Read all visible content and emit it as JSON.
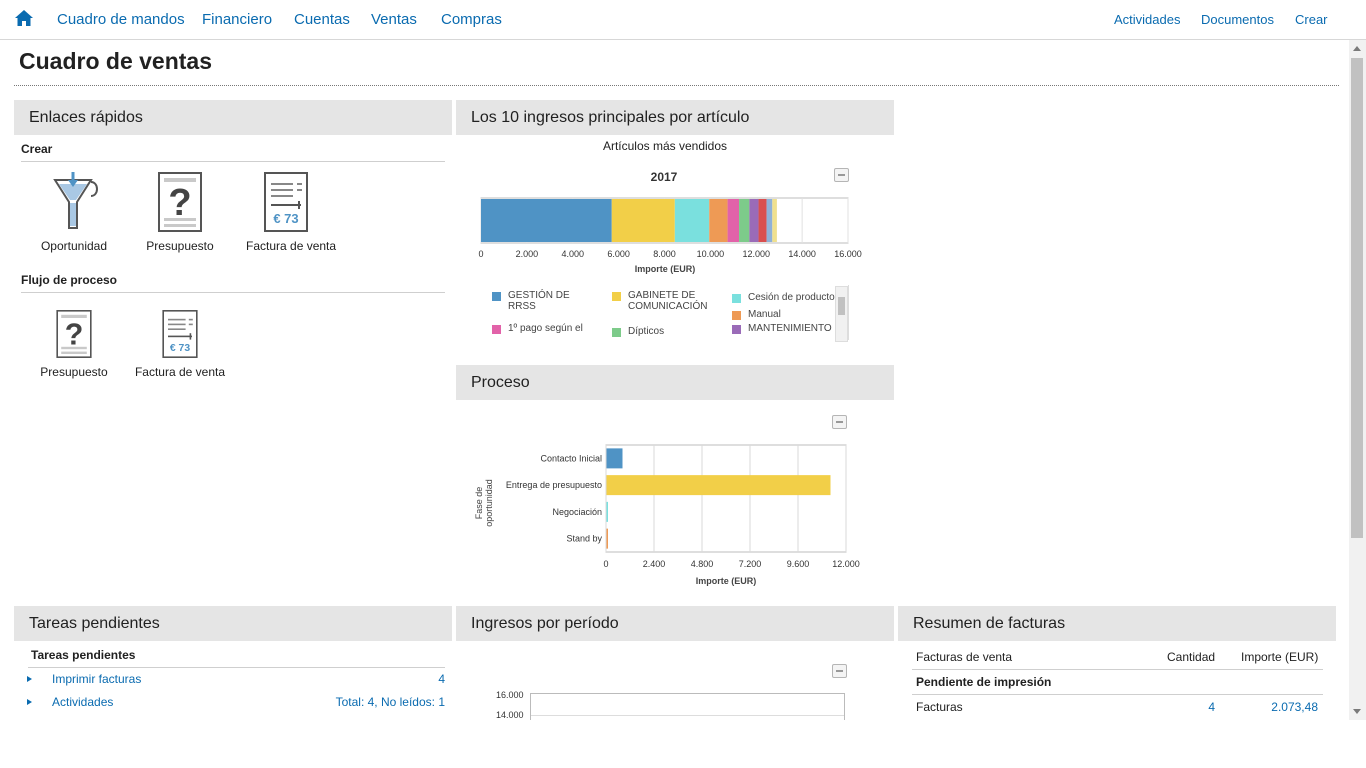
{
  "nav": {
    "left": [
      "Cuadro de mandos",
      "Financiero",
      "Cuentas",
      "Ventas",
      "Compras"
    ],
    "right": [
      "Actividades",
      "Documentos",
      "Crear"
    ]
  },
  "page": {
    "title": "Cuadro de ventas"
  },
  "quick_links": {
    "title": "Enlaces rápidos",
    "create_label": "Crear",
    "create_items": [
      "Oportunidad",
      "Presupuesto",
      "Factura de venta"
    ],
    "flow_label": "Flujo de proceso",
    "flow_items": [
      "Presupuesto",
      "Factura de venta"
    ],
    "invoice_icon_text": "€ 73"
  },
  "top_items": {
    "title": "Los 10 ingresos principales por artículo",
    "chart_data": {
      "type": "bar",
      "orientation": "horizontal-stacked",
      "title": "Artículos más vendidos",
      "subtitle": "2017",
      "xlabel": "Importe (EUR)",
      "xlim": [
        0,
        16000
      ],
      "ticks": [
        "0",
        "2.000",
        "4.000",
        "6.000",
        "8.000",
        "10.000",
        "12.000",
        "14.000",
        "16.000"
      ],
      "categories": [
        "2017"
      ],
      "series": [
        {
          "name": "GESTIÓN DE RRSS",
          "values": [
            5700
          ],
          "color": "#4f93c5"
        },
        {
          "name": "GABINETE DE COMUNICACIÓN",
          "values": [
            2750
          ],
          "color": "#f2cf48"
        },
        {
          "name": "Cesión de producto",
          "values": [
            1500
          ],
          "color": "#7ae0de"
        },
        {
          "name": "Manual",
          "values": [
            800
          ],
          "color": "#ee9a55"
        },
        {
          "name": "1º pago según el",
          "values": [
            500
          ],
          "color": "#e262a9"
        },
        {
          "name": "Dípticos",
          "values": [
            450
          ],
          "color": "#7dcb8a"
        },
        {
          "name": "MANTENIMIENTO",
          "values": [
            400
          ],
          "color": "#9a6bb8"
        },
        {
          "name": "",
          "values": [
            350
          ],
          "color": "#d94f4f"
        },
        {
          "name": "",
          "values": [
            250
          ],
          "color": "#8fb1d8"
        },
        {
          "name": "",
          "values": [
            200
          ],
          "color": "#efe08e"
        }
      ],
      "legend": [
        {
          "label": "GESTIÓN DE\nRRSS",
          "color": "#4f93c5"
        },
        {
          "label": "GABINETE DE\nCOMUNICACIÓN",
          "color": "#f2cf48"
        },
        {
          "label": "Cesión de producto",
          "color": "#7ae0de"
        },
        {
          "label": "1º pago según el",
          "color": "#e262a9"
        },
        {
          "label": "Dípticos",
          "color": "#7dcb8a"
        },
        {
          "label": "Manual",
          "color": "#ee9a55"
        },
        {
          "label": "MANTENIMIENTO",
          "color": "#9a6bb8"
        }
      ]
    }
  },
  "process": {
    "title": "Proceso",
    "chart_data": {
      "type": "bar",
      "orientation": "horizontal",
      "xlabel": "Importe (EUR)",
      "ylabel": "Fase de oportunidad",
      "xlim": [
        0,
        12000
      ],
      "ticks": [
        "0",
        "2.400",
        "4.800",
        "7.200",
        "9.600",
        "12.000"
      ],
      "categories": [
        "Contacto Inicial",
        "Entrega de presupuesto",
        "Negociación",
        "Stand by"
      ],
      "values": [
        800,
        11200,
        60,
        60
      ],
      "colors": [
        "#4f93c5",
        "#f2cf48",
        "#7ae0de",
        "#ee9a55"
      ]
    }
  },
  "pending": {
    "title": "Tareas pendientes",
    "subtitle": "Tareas pendientes",
    "rows": [
      {
        "label": "Imprimir facturas",
        "value": "4"
      },
      {
        "label": "Actividades",
        "value": "Total: 4, No leídos: 1"
      }
    ]
  },
  "income": {
    "title": "Ingresos por período",
    "chart_data": {
      "type": "line",
      "yticks": [
        "16.000",
        "14.000"
      ]
    }
  },
  "invoices": {
    "title": "Resumen de facturas",
    "col_name": "Facturas de venta",
    "col_qty": "Cantidad",
    "col_amount": "Importe (EUR)",
    "section": "Pendiente de impresión",
    "rows": [
      {
        "label": "Facturas",
        "qty": "4",
        "amount": "2.073,48"
      }
    ]
  },
  "colors": {
    "accent": "#0a6bb0",
    "panel_header": "#e5e5e5"
  }
}
